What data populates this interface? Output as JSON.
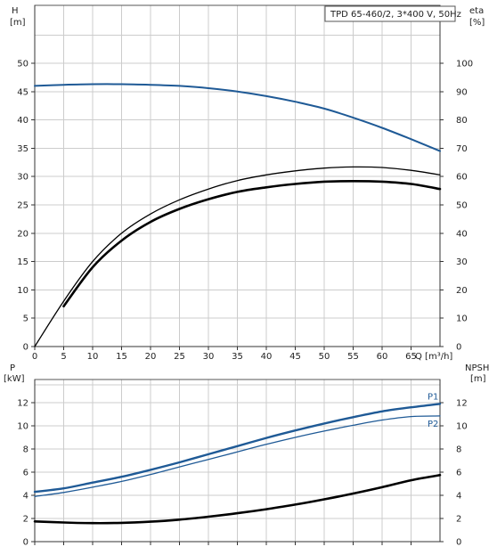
{
  "title": "TPD 65-460/2, 3*400 V, 50Hz",
  "colors": {
    "blue": "#1f5a96",
    "black": "#000000",
    "grid": "#cccccc"
  },
  "top_axes": {
    "left_label_line1": "H",
    "left_label_line2": "[m]",
    "right_label_line1": "eta",
    "right_label_line2": "[%]",
    "x_label": "Q [m³/h]"
  },
  "bottom_axes": {
    "left_label_line1": "P",
    "left_label_line2": "[kW]",
    "right_label_line1": "NPSH",
    "right_label_line2": "[m]"
  },
  "chart_data": [
    {
      "type": "line",
      "x": [
        0,
        5,
        10,
        15,
        20,
        25,
        30,
        35,
        40,
        45,
        50,
        55,
        60,
        65,
        70
      ],
      "xlim": [
        0,
        70
      ],
      "ylim": [
        0,
        50
      ],
      "y2lim": [
        0,
        100
      ],
      "x_ticks": [
        0,
        5,
        10,
        15,
        20,
        25,
        30,
        35,
        40,
        45,
        50,
        55,
        60,
        65
      ],
      "y_ticks": [
        0,
        5,
        10,
        15,
        20,
        25,
        30,
        35,
        40,
        45,
        50
      ],
      "y2_ticks": [
        0,
        10,
        20,
        30,
        40,
        50,
        60,
        70,
        80,
        90,
        100
      ],
      "series": [
        {
          "axis": "left",
          "color": "#1f5a96",
          "width": 2,
          "start": 5,
          "values": [
            46,
            46.2,
            46.3,
            46.3,
            46.2,
            46,
            45.6,
            45,
            44.2,
            43.2,
            42,
            40.4,
            38.6,
            36.6,
            34.5
          ]
        },
        {
          "axis": "right",
          "color": "#000000",
          "width": 1.3,
          "start": 0,
          "values": [
            0,
            16,
            30,
            40,
            46.8,
            51.8,
            55.6,
            58.6,
            60.6,
            62,
            63,
            63.4,
            63.2,
            62.2,
            60.6
          ]
        },
        {
          "axis": "right",
          "color": "#000000",
          "width": 2.6,
          "start": 5,
          "values": [
            null,
            14.2,
            28,
            37.4,
            44,
            48.6,
            52,
            54.6,
            56.2,
            57.4,
            58.2,
            58.4,
            58.2,
            57.4,
            55.6
          ]
        }
      ]
    },
    {
      "type": "line",
      "x": [
        0,
        5,
        10,
        15,
        20,
        25,
        30,
        35,
        40,
        45,
        50,
        55,
        60,
        65,
        70
      ],
      "xlim": [
        0,
        70
      ],
      "ylim": [
        0,
        14
      ],
      "y2lim": [
        0,
        14
      ],
      "y_ticks": [
        0,
        2,
        4,
        6,
        8,
        10,
        12
      ],
      "y2_ticks": [
        0,
        2,
        4,
        6,
        8,
        10,
        12
      ],
      "series": [
        {
          "name": "P1",
          "axis": "left",
          "color": "#1f5a96",
          "width": 2.4,
          "start": 5,
          "values": [
            4.3,
            4.6,
            5.1,
            5.6,
            6.2,
            6.85,
            7.55,
            8.25,
            8.95,
            9.6,
            10.2,
            10.75,
            11.25,
            11.6,
            11.9
          ]
        },
        {
          "name": "P2",
          "axis": "left",
          "color": "#1f5a96",
          "width": 1.3,
          "start": 5,
          "values": [
            3.9,
            4.25,
            4.7,
            5.2,
            5.8,
            6.45,
            7.1,
            7.75,
            8.4,
            9,
            9.55,
            10.05,
            10.5,
            10.8,
            10.85
          ]
        },
        {
          "axis": "right",
          "color": "#000000",
          "width": 2.6,
          "start": 5,
          "values": [
            1.75,
            1.65,
            1.6,
            1.62,
            1.72,
            1.9,
            2.15,
            2.45,
            2.8,
            3.2,
            3.65,
            4.15,
            4.7,
            5.3,
            5.75
          ]
        }
      ]
    }
  ]
}
